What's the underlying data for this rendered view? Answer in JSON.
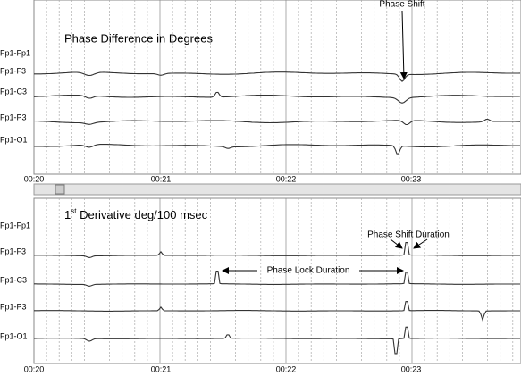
{
  "annotations": {
    "phase_shift": "Phase Shift",
    "phase_shift_duration": "Phase Shift Duration",
    "phase_lock_duration": "Phase Lock Duration"
  },
  "panels": [
    {
      "title": "Phase Difference in Degrees",
      "channels": [
        "Fp1-Fp1",
        "Fp1-F3",
        "Fp1-C3",
        "Fp1-P3",
        "Fp1-O1"
      ],
      "time_labels": [
        "00:20",
        "00:21",
        "00:22",
        "00:23"
      ]
    },
    {
      "title": {
        "number": "1",
        "superscript": "st",
        "text": " Derivative deg/100 msec"
      },
      "channels": [
        "Fp1-Fp1",
        "Fp1-F3",
        "Fp1-C3",
        "Fp1-P3",
        "Fp1-O1"
      ],
      "time_labels": [
        "00:20",
        "00:21",
        "00:22",
        "00:23"
      ]
    }
  ]
}
